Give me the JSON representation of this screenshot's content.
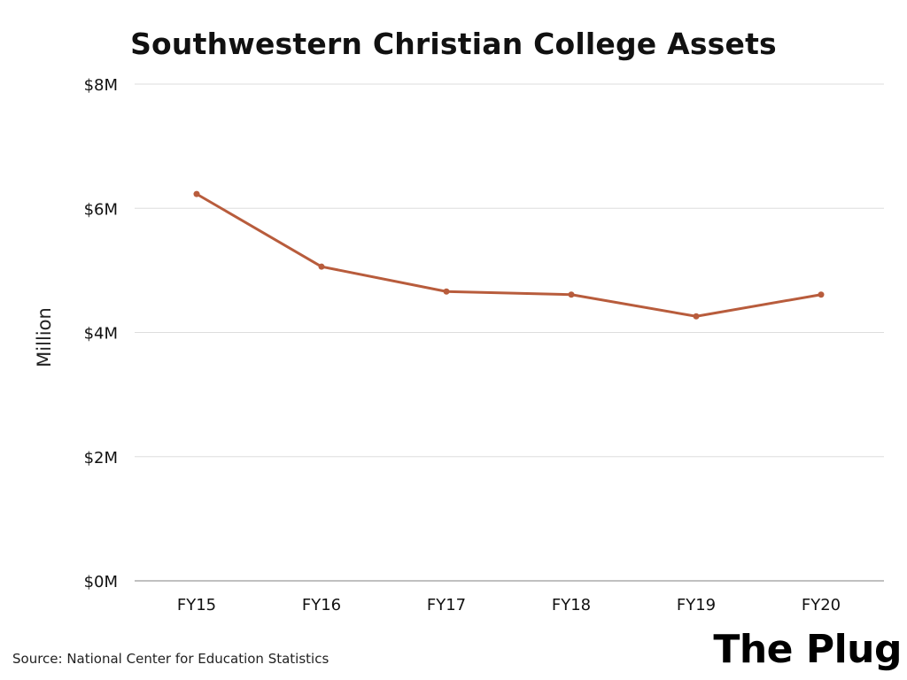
{
  "chart_data": {
    "type": "line",
    "title": "Southwestern Christian College Assets",
    "xlabel": "",
    "ylabel": "Million",
    "categories": [
      "FY15",
      "FY16",
      "FY17",
      "FY18",
      "FY19",
      "FY20"
    ],
    "series": [
      {
        "values": [
          6.23,
          5.06,
          4.66,
          4.61,
          4.26,
          4.61
        ],
        "color": "#b85c3c"
      }
    ],
    "ylim": [
      0,
      8
    ],
    "yticks": [
      0,
      2,
      4,
      6,
      8
    ],
    "ytick_labels": [
      "$0M",
      "$2M",
      "$4M",
      "$6M",
      "$8M"
    ],
    "grid": true,
    "legend": "none"
  },
  "footer": {
    "source": "Source: National Center for Education Statistics",
    "brand": "The Plug"
  }
}
